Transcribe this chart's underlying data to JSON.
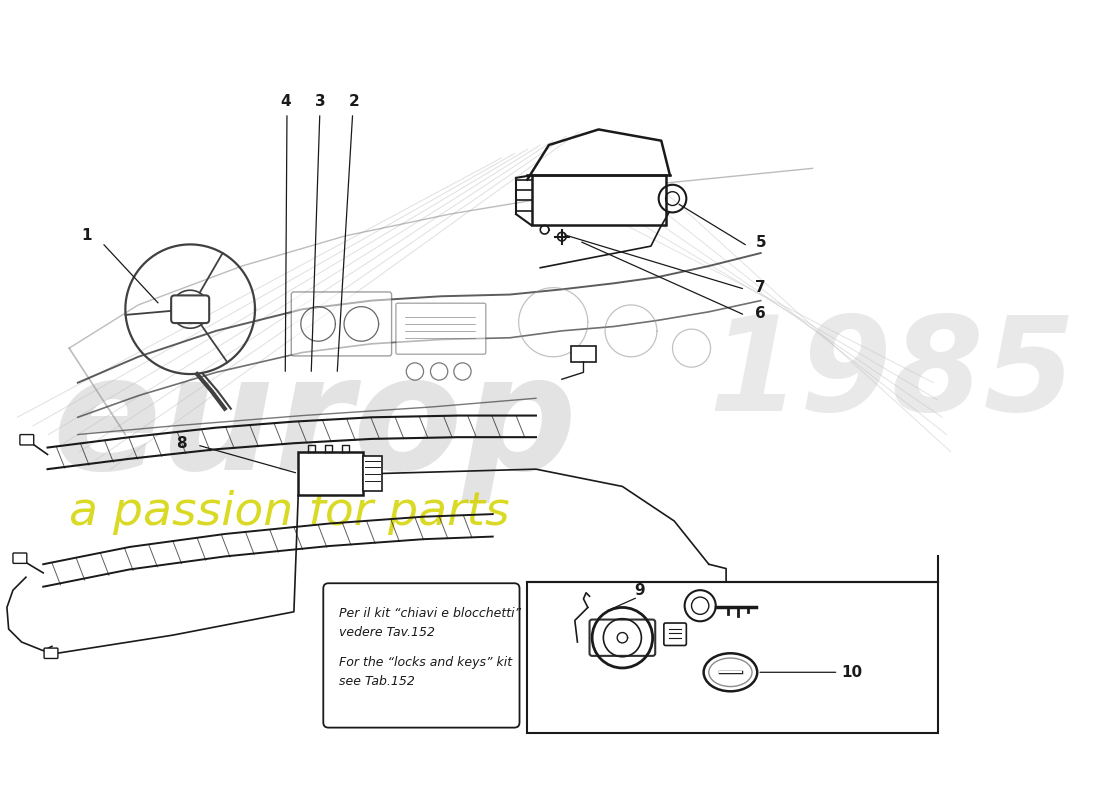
{
  "bg_color": "#ffffff",
  "line_color": "#1a1a1a",
  "sketch_color": "#404040",
  "light_color": "#909090",
  "lighter_color": "#c0c0c0",
  "wm_gray": "#c8c8c8",
  "wm_yellow": "#d4d400",
  "note_italian1": "Per il kit “chiavi e blocchetti”",
  "note_italian2": "vedere Tav.152",
  "note_english1": "For the “locks and keys” kit",
  "note_english2": "see Tab.152"
}
